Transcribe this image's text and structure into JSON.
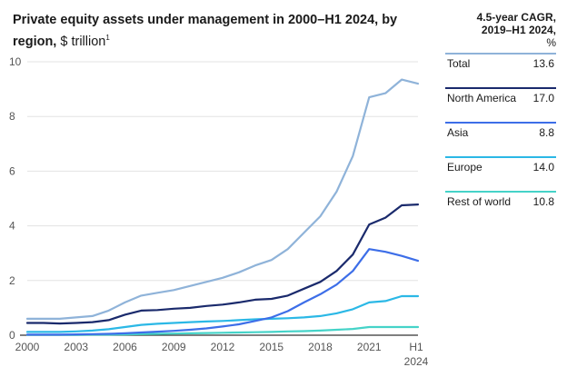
{
  "title": {
    "bold": "Private equity assets under management in 2000–H1 2024, by region,",
    "unit": "$ trillion",
    "footnote": "1"
  },
  "legend": {
    "header_line1": "4.5-year CAGR,",
    "header_line2": "2019–H1 2024,",
    "header_line3": "%",
    "items": [
      {
        "label": "Total",
        "value": "13.6",
        "color": "#8fb3d9"
      },
      {
        "label": "North America",
        "value": "17.0",
        "color": "#1a2a6c"
      },
      {
        "label": "Asia",
        "value": "8.8",
        "color": "#3d6ee8"
      },
      {
        "label": "Europe",
        "value": "14.0",
        "color": "#2bb8e6"
      },
      {
        "label": "Rest of world",
        "value": "10.8",
        "color": "#45d3c8"
      }
    ]
  },
  "chart_data": {
    "type": "line",
    "x": [
      2000,
      2001,
      2002,
      2003,
      2004,
      2005,
      2006,
      2007,
      2008,
      2009,
      2010,
      2011,
      2012,
      2013,
      2014,
      2015,
      2016,
      2017,
      2018,
      2019,
      2020,
      2021,
      2022,
      2023,
      2024
    ],
    "x_ticks": [
      "2000",
      "2003",
      "2006",
      "2009",
      "2012",
      "2015",
      "2018",
      "2021",
      "H1 2024"
    ],
    "ylim": [
      0,
      10
    ],
    "y_ticks": [
      "0",
      "2",
      "4",
      "6",
      "8",
      "10"
    ],
    "grid": true,
    "series": [
      {
        "name": "Total",
        "color": "#8fb3d9",
        "values": [
          0.6,
          0.6,
          0.6,
          0.65,
          0.7,
          0.9,
          1.2,
          1.45,
          1.55,
          1.65,
          1.8,
          1.95,
          2.1,
          2.3,
          2.55,
          2.75,
          3.15,
          3.75,
          4.35,
          5.25,
          6.55,
          8.7,
          8.85,
          9.35,
          9.2
        ]
      },
      {
        "name": "North America",
        "color": "#1a2a6c",
        "values": [
          0.45,
          0.45,
          0.43,
          0.45,
          0.48,
          0.55,
          0.75,
          0.9,
          0.92,
          0.97,
          1.0,
          1.07,
          1.12,
          1.2,
          1.3,
          1.33,
          1.45,
          1.7,
          1.95,
          2.35,
          2.95,
          4.05,
          4.3,
          4.75,
          4.78
        ]
      },
      {
        "name": "Asia",
        "color": "#3d6ee8",
        "values": [
          0.02,
          0.02,
          0.02,
          0.03,
          0.04,
          0.05,
          0.07,
          0.1,
          0.13,
          0.16,
          0.2,
          0.25,
          0.32,
          0.4,
          0.52,
          0.65,
          0.88,
          1.2,
          1.5,
          1.85,
          2.35,
          3.15,
          3.05,
          2.9,
          2.72
        ]
      },
      {
        "name": "Europe",
        "color": "#2bb8e6",
        "values": [
          0.12,
          0.12,
          0.12,
          0.14,
          0.17,
          0.22,
          0.3,
          0.38,
          0.42,
          0.45,
          0.48,
          0.5,
          0.52,
          0.55,
          0.58,
          0.6,
          0.62,
          0.65,
          0.7,
          0.8,
          0.95,
          1.2,
          1.25,
          1.43,
          1.43
        ]
      },
      {
        "name": "Rest of world",
        "color": "#45d3c8",
        "values": [
          0.01,
          0.01,
          0.01,
          0.01,
          0.02,
          0.02,
          0.03,
          0.04,
          0.05,
          0.06,
          0.07,
          0.08,
          0.09,
          0.1,
          0.11,
          0.12,
          0.14,
          0.15,
          0.17,
          0.2,
          0.23,
          0.3,
          0.3,
          0.3,
          0.3
        ]
      }
    ]
  }
}
